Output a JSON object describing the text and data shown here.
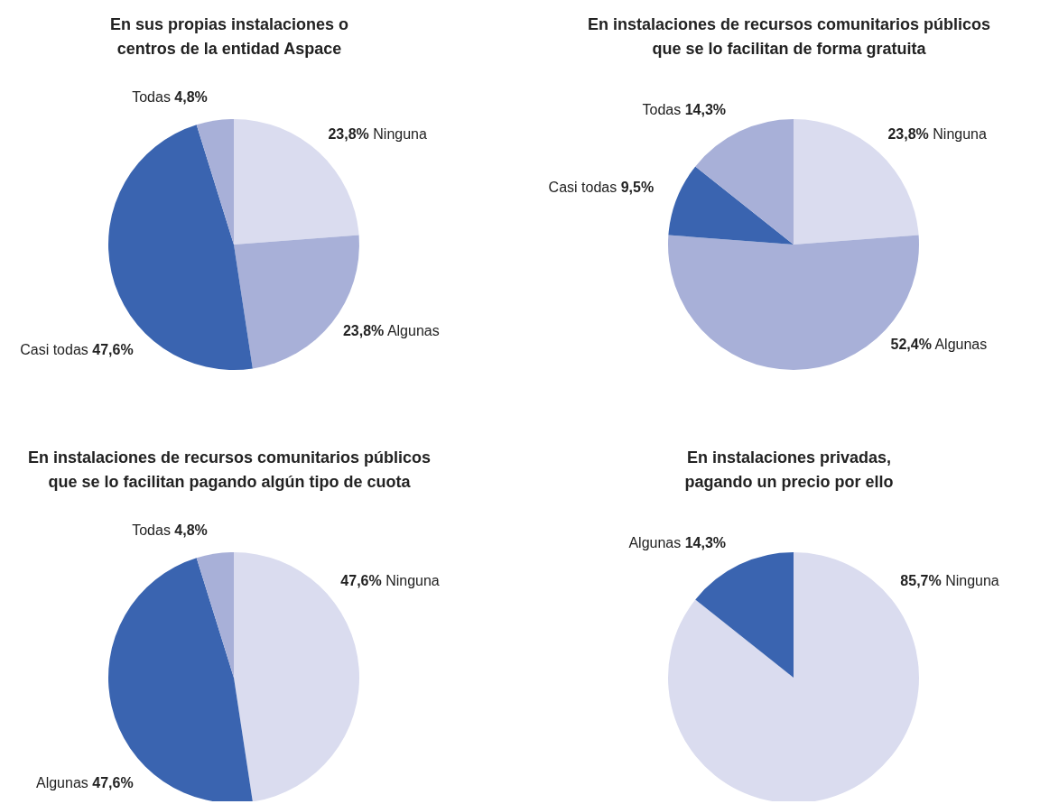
{
  "chart_data": [
    {
      "type": "pie",
      "title": "En sus propias instalaciones o\ncentros de la entidad Aspace",
      "categories": [
        "Ninguna",
        "Algunas",
        "Casi todas",
        "Todas"
      ],
      "values": [
        23.8,
        23.8,
        47.6,
        4.8
      ],
      "colors": [
        "#dadcef",
        "#a8b0d8",
        "#3a64b0",
        "#a8b0d8"
      ],
      "value_labels": [
        "23,8%",
        "23,8%",
        "47,6%",
        "4,8%"
      ]
    },
    {
      "type": "pie",
      "title": "En instalaciones de recursos comunitarios públicos\nque se lo facilitan de forma gratuita",
      "categories": [
        "Ninguna",
        "Algunas",
        "Casi todas",
        "Todas"
      ],
      "values": [
        23.8,
        52.4,
        9.5,
        14.3
      ],
      "colors": [
        "#dadcef",
        "#a8b0d8",
        "#3a64b0",
        "#a8b0d8"
      ],
      "value_labels": [
        "23,8%",
        "52,4%",
        "9,5%",
        "14,3%"
      ]
    },
    {
      "type": "pie",
      "title": "En instalaciones de recursos comunitarios públicos\nque se lo facilitan pagando algún tipo de cuota",
      "categories": [
        "Ninguna",
        "Algunas",
        "Todas"
      ],
      "values": [
        47.6,
        47.6,
        4.8
      ],
      "colors": [
        "#dadcef",
        "#3a64b0",
        "#a8b0d8"
      ],
      "value_labels": [
        "47,6%",
        "47,6%",
        "4,8%"
      ]
    },
    {
      "type": "pie",
      "title": "En instalaciones privadas,\npagando un precio por ello",
      "categories": [
        "Ninguna",
        "Algunas"
      ],
      "values": [
        85.7,
        14.3
      ],
      "colors": [
        "#dadcef",
        "#3a64b0"
      ],
      "value_labels": [
        "85,7%",
        "14,3%"
      ]
    }
  ]
}
